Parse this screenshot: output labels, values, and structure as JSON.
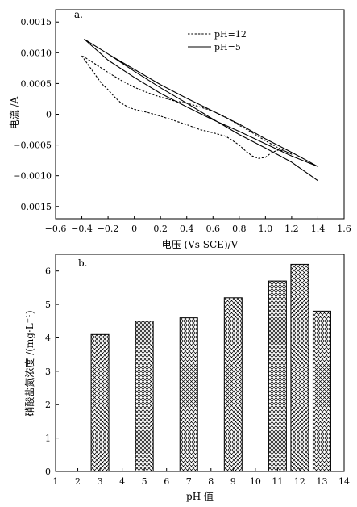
{
  "chart_data": [
    {
      "type": "line",
      "panel_label": "a.",
      "xlabel": "电压 (Vs SCE)/V",
      "ylabel": "电流 /A",
      "xlim": [
        -0.6,
        1.6
      ],
      "ylim": [
        -0.0017,
        0.0017
      ],
      "xticks": [
        -0.6,
        -0.4,
        -0.2,
        0,
        0.2,
        0.4,
        0.6,
        0.8,
        1.0,
        1.2,
        1.4,
        1.6
      ],
      "xtick_labels": [
        "−0.6",
        "−0.4",
        "−0.2",
        "0",
        "0.2",
        "0.4",
        "0.6",
        "0.8",
        "1.0",
        "1.2",
        "1.4",
        "1.6"
      ],
      "yticks": [
        0.0015,
        0.001,
        0.0005,
        0,
        -0.0005,
        -0.001,
        -0.0015
      ],
      "ytick_labels": [
        "0.0015",
        "0.0010",
        "0.0005",
        "0",
        "−0.0005",
        "−0.0010",
        "−0.0015"
      ],
      "legend_position": "top-center",
      "series": [
        {
          "name": "pH=12",
          "style": "dashed",
          "color": "#000000",
          "x": [
            -0.4,
            -0.35,
            -0.3,
            -0.25,
            -0.2,
            -0.15,
            -0.1,
            -0.05,
            0.0,
            0.1,
            0.2,
            0.3,
            0.4,
            0.5,
            0.6,
            0.7,
            0.8,
            0.85,
            0.9,
            0.95,
            1.0,
            1.05,
            1.1,
            1.15,
            1.2,
            1.1,
            1.0,
            0.9,
            0.8,
            0.7,
            0.6,
            0.5,
            0.4,
            0.3,
            0.2,
            0.1,
            0.0,
            -0.1,
            -0.2,
            -0.3,
            -0.38,
            -0.4
          ],
          "y": [
            0.00095,
            0.0008,
            0.00065,
            0.0005,
            0.0004,
            0.00028,
            0.00018,
            0.00012,
            8e-05,
            3e-05,
            -3e-05,
            -0.0001,
            -0.00017,
            -0.00025,
            -0.0003,
            -0.00036,
            -0.0005,
            -0.0006,
            -0.00068,
            -0.00072,
            -0.0007,
            -0.00062,
            -0.00058,
            -0.0006,
            -0.00065,
            -0.00055,
            -0.00043,
            -0.0003,
            -0.00018,
            -5e-05,
            5e-05,
            0.00012,
            0.00018,
            0.00022,
            0.00028,
            0.00035,
            0.00044,
            0.00055,
            0.00068,
            0.00082,
            0.00093,
            0.00095
          ]
        },
        {
          "name": "pH=5",
          "style": "solid",
          "color": "#000000",
          "x": [
            -0.38,
            -0.2,
            0.0,
            0.2,
            0.4,
            0.6,
            0.8,
            1.0,
            1.2,
            1.4,
            1.2,
            1.0,
            0.8,
            0.6,
            0.4,
            0.2,
            0.0,
            -0.2,
            -0.38,
            -0.38,
            -0.2,
            0.0,
            0.2,
            0.4,
            0.6,
            0.8,
            1.0,
            1.2,
            1.4
          ],
          "y": [
            0.00122,
            0.00098,
            0.00073,
            0.00048,
            0.00026,
            5e-05,
            -0.00016,
            -0.0004,
            -0.00062,
            -0.00085,
            -0.00068,
            -0.00048,
            -0.00028,
            -9e-05,
            0.00012,
            0.00034,
            0.0006,
            0.00088,
            0.00122,
            0.00122,
            0.00098,
            0.0007,
            0.00043,
            0.00018,
            -8e-05,
            -0.00033,
            -0.00055,
            -0.00078,
            -0.00108
          ]
        }
      ]
    },
    {
      "type": "bar",
      "panel_label": "b.",
      "xlabel": "pH 值",
      "ylabel": "硝酸盐氮浓度 /(mg·L⁻¹)",
      "xlim": [
        1,
        14
      ],
      "ylim": [
        0,
        6.5
      ],
      "xticks": [
        1,
        2,
        3,
        4,
        5,
        6,
        7,
        8,
        9,
        10,
        11,
        12,
        13,
        14
      ],
      "xtick_labels": [
        "1",
        "2",
        "3",
        "4",
        "5",
        "6",
        "7",
        "8",
        "9",
        "10",
        "11",
        "12",
        "13",
        "14"
      ],
      "yticks": [
        0,
        1,
        2,
        3,
        4,
        5,
        6
      ],
      "ytick_labels": [
        "0",
        "1",
        "2",
        "3",
        "4",
        "5",
        "6"
      ],
      "pattern": "crosshatch",
      "categories": [
        3,
        5,
        7,
        9,
        11,
        12,
        13
      ],
      "values": [
        4.1,
        4.5,
        4.6,
        5.2,
        5.7,
        6.2,
        4.8
      ]
    }
  ]
}
